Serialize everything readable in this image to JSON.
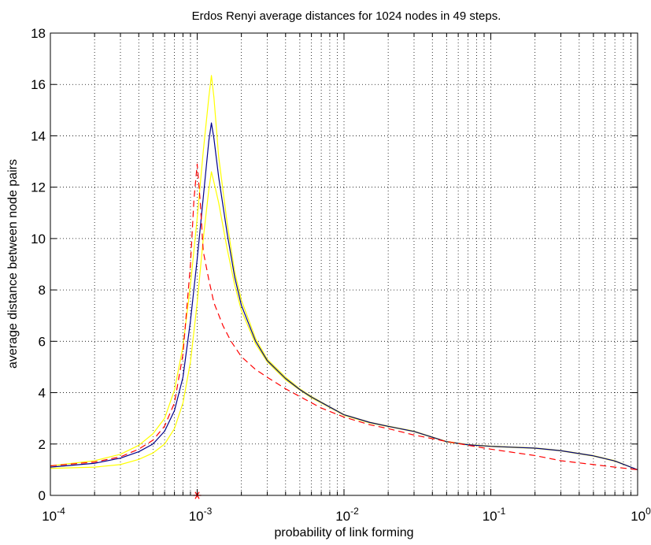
{
  "chart_data": {
    "type": "line",
    "title": "Erdos Renyi average distances for 1024 nodes in 49 steps.",
    "xlabel": "probability of link forming",
    "ylabel": "average distance between node pairs",
    "x_scale": "log",
    "xlim": [
      0.0001,
      1
    ],
    "ylim": [
      0,
      18
    ],
    "grid": true,
    "x_tick_labels": [
      {
        "value": 0.0001,
        "base": "10",
        "exp": "-4"
      },
      {
        "value": 0.001,
        "base": "10",
        "exp": "-3"
      },
      {
        "value": 0.01,
        "base": "10",
        "exp": "-2"
      },
      {
        "value": 0.1,
        "base": "10",
        "exp": "-1"
      },
      {
        "value": 1,
        "base": "10",
        "exp": "0"
      }
    ],
    "y_ticks": [
      0,
      2,
      4,
      6,
      8,
      10,
      12,
      14,
      16,
      18
    ],
    "marker": {
      "x": 0.001,
      "y": 0,
      "symbol": "*",
      "color": "#ff0000"
    },
    "series": [
      {
        "style": "solid",
        "color": "#ffff00",
        "x": [
          0.0001,
          0.0002,
          0.0003,
          0.0004,
          0.0005,
          0.0006,
          0.0007,
          0.0008,
          0.0009,
          0.001,
          0.0011,
          0.0012,
          0.00125,
          0.0013,
          0.0014,
          0.0016,
          0.0018,
          0.002,
          0.0025,
          0.003,
          0.004,
          0.005,
          0.006,
          0.008,
          0.01,
          0.015,
          0.02,
          0.03,
          0.05,
          0.07,
          0.1,
          0.2,
          0.3,
          0.5,
          0.7,
          1
        ],
        "y": [
          1.15,
          1.35,
          1.6,
          1.95,
          2.4,
          3.0,
          4.1,
          5.8,
          8.2,
          10.8,
          13.4,
          15.5,
          16.35,
          15.5,
          13.2,
          10.6,
          8.7,
          7.6,
          6.1,
          5.3,
          4.6,
          4.15,
          3.85,
          3.45,
          3.15,
          2.85,
          2.7,
          2.5,
          2.1,
          1.98,
          1.92,
          1.85,
          1.75,
          1.55,
          1.35,
          1.0
        ]
      },
      {
        "style": "solid",
        "color": "#ffff00",
        "x": [
          0.0001,
          0.0002,
          0.0003,
          0.0004,
          0.0005,
          0.0006,
          0.0007,
          0.0008,
          0.0009,
          0.001,
          0.0011,
          0.0012,
          0.00125,
          0.0013,
          0.0014,
          0.0016,
          0.0018,
          0.002,
          0.0025,
          0.003,
          0.004,
          0.005,
          0.006,
          0.008,
          0.01,
          0.015,
          0.02,
          0.03,
          0.05,
          0.07,
          0.1,
          0.2,
          0.3,
          0.5,
          0.7,
          1
        ],
        "y": [
          1.05,
          1.1,
          1.2,
          1.4,
          1.65,
          2.0,
          2.6,
          3.6,
          5.2,
          7.5,
          10.0,
          11.9,
          12.6,
          12.2,
          11.4,
          9.6,
          8.2,
          7.2,
          5.9,
          5.2,
          4.5,
          4.1,
          3.8,
          3.42,
          3.12,
          2.82,
          2.68,
          2.48,
          2.08,
          1.96,
          1.9,
          1.83,
          1.73,
          1.53,
          1.33,
          1.0
        ]
      },
      {
        "style": "solid",
        "color": "#00008b",
        "x": [
          0.0001,
          0.0002,
          0.0003,
          0.0004,
          0.0005,
          0.0006,
          0.0007,
          0.0008,
          0.0009,
          0.001,
          0.0011,
          0.0012,
          0.00125,
          0.0013,
          0.0014,
          0.0016,
          0.0018,
          0.002,
          0.0025,
          0.003,
          0.004,
          0.005,
          0.006,
          0.008,
          0.01,
          0.015,
          0.02,
          0.03,
          0.05,
          0.07,
          0.1,
          0.2,
          0.3,
          0.5,
          0.7,
          1
        ],
        "y": [
          1.1,
          1.25,
          1.45,
          1.7,
          2.0,
          2.5,
          3.3,
          4.6,
          6.8,
          9.2,
          11.6,
          13.8,
          14.5,
          13.9,
          12.4,
          10.2,
          8.5,
          7.4,
          6.0,
          5.25,
          4.55,
          4.12,
          3.83,
          3.44,
          3.14,
          2.84,
          2.69,
          2.49,
          2.09,
          1.97,
          1.91,
          1.84,
          1.74,
          1.54,
          1.34,
          1.0
        ]
      },
      {
        "style": "dashed",
        "color": "#ff0000",
        "x": [
          0.0001,
          0.0002,
          0.0003,
          0.0004,
          0.0005,
          0.0006,
          0.0007,
          0.0008,
          0.0009,
          0.00095,
          0.001,
          0.00105,
          0.0011,
          0.0012,
          0.0013,
          0.0015,
          0.0017,
          0.002,
          0.0025,
          0.003,
          0.004,
          0.005,
          0.007,
          0.01,
          0.015,
          0.02,
          0.03,
          0.05,
          0.07,
          0.1,
          0.2,
          0.3,
          0.5,
          0.7,
          1
        ],
        "y": [
          1.15,
          1.3,
          1.5,
          1.8,
          2.15,
          2.7,
          3.6,
          5.5,
          9.0,
          11.5,
          12.9,
          11.4,
          9.5,
          8.4,
          7.5,
          6.6,
          6.0,
          5.4,
          4.9,
          4.6,
          4.15,
          3.85,
          3.4,
          3.05,
          2.75,
          2.6,
          2.35,
          2.1,
          1.95,
          1.8,
          1.55,
          1.35,
          1.2,
          1.1,
          1.0
        ]
      }
    ]
  }
}
